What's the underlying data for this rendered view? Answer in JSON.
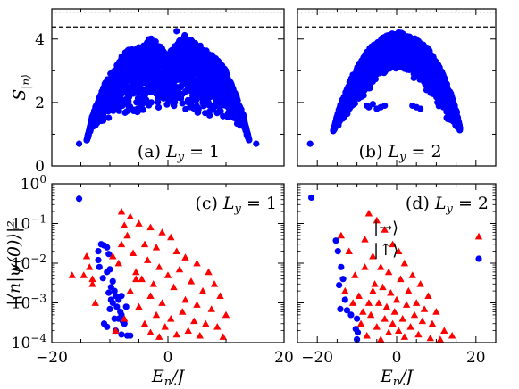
{
  "figure": {
    "xlabel": "E_n/J",
    "ylabel_top": "S_|n⟩",
    "ylabel_bottom": "|⟨n|ψ(0)⟩|²"
  },
  "chart_data": [
    {
      "id": "a",
      "type": "scatter",
      "panel_label": "(a) L_y = 1",
      "ylabel": "S_|n⟩",
      "xlim": [
        -20,
        20
      ],
      "ylim": [
        0,
        4.95
      ],
      "y_ticks": [
        0,
        2,
        4
      ],
      "reference_lines": [
        {
          "style": "dotted",
          "y": 4.85
        },
        {
          "style": "dashed",
          "y": 4.38
        }
      ],
      "series": [
        {
          "color": "#0000ff",
          "marker": "circle",
          "envelope": {
            "x": [
              -14,
              -13,
              -12,
              -11,
              -10,
              -9,
              -8,
              -7,
              -6,
              -5,
              -4,
              -3,
              -2,
              -1,
              0,
              1,
              2,
              3,
              4,
              5,
              6,
              7,
              8,
              9,
              10,
              11,
              12,
              13,
              14
            ],
            "upper": [
              0.8,
              1.6,
              2.1,
              2.55,
              2.9,
              3.1,
              3.45,
              3.65,
              3.7,
              3.8,
              3.9,
              4.05,
              3.95,
              3.7,
              3.5,
              3.75,
              3.95,
              4.15,
              4.0,
              3.85,
              3.75,
              3.6,
              3.45,
              3.25,
              3.0,
              2.55,
              2.1,
              1.6,
              0.8
            ],
            "lower": [
              0.8,
              1.2,
              1.3,
              1.4,
              1.45,
              1.5,
              1.55,
              1.6,
              1.6,
              1.65,
              1.7,
              1.75,
              1.8,
              1.85,
              1.9,
              1.85,
              1.8,
              1.75,
              1.7,
              1.65,
              1.6,
              1.55,
              1.55,
              1.5,
              1.45,
              1.4,
              1.3,
              1.2,
              0.8
            ]
          },
          "points": [
            [
              -15.3,
              0.7
            ],
            [
              15.2,
              0.7
            ],
            [
              1.5,
              4.25
            ]
          ]
        }
      ]
    },
    {
      "id": "b",
      "type": "scatter",
      "panel_label": "(b) L_y = 2",
      "xlim": [
        -25,
        25
      ],
      "ylim": [
        0,
        4.95
      ],
      "reference_lines": [
        {
          "style": "dotted",
          "y": 4.85
        },
        {
          "style": "dashed",
          "y": 4.38
        }
      ],
      "series": [
        {
          "color": "#0000ff",
          "marker": "circle",
          "envelope": {
            "x": [
              -16,
              -15,
              -14,
              -13,
              -12,
              -11,
              -10,
              -9,
              -8,
              -7,
              -6,
              -5,
              -4,
              -3,
              -2,
              -1,
              0,
              1,
              2,
              3,
              4,
              5,
              6,
              7,
              8,
              9,
              10,
              11,
              12,
              13,
              14,
              15,
              16
            ],
            "upper": [
              1.1,
              1.6,
              2.0,
              2.3,
              2.6,
              2.9,
              3.1,
              3.3,
              3.5,
              3.7,
              3.8,
              3.9,
              4.0,
              4.1,
              4.15,
              4.2,
              4.22,
              4.2,
              4.15,
              4.1,
              4.05,
              4.0,
              3.9,
              3.8,
              3.7,
              3.5,
              3.3,
              3.1,
              2.8,
              2.5,
              2.2,
              1.8,
              1.2
            ],
            "lower": [
              1.1,
              1.2,
              1.35,
              1.5,
              1.7,
              1.9,
              2.0,
              2.1,
              2.2,
              2.3,
              2.5,
              2.7,
              2.8,
              2.9,
              3.0,
              3.0,
              3.0,
              3.0,
              3.0,
              2.9,
              2.8,
              2.7,
              2.6,
              2.4,
              2.3,
              2.2,
              2.0,
              1.8,
              1.6,
              1.4,
              1.3,
              1.2,
              1.1
            ]
          },
          "points": [
            [
              -21.8,
              0.7
            ],
            [
              -7.5,
              1.9
            ],
            [
              -7.0,
              1.85
            ],
            [
              -6.0,
              1.95
            ],
            [
              -5.0,
              1.8
            ],
            [
              -4.0,
              1.85
            ],
            [
              -3.0,
              1.9
            ],
            [
              4.0,
              1.9
            ],
            [
              5.0,
              1.85
            ],
            [
              6.0,
              1.8
            ]
          ]
        }
      ]
    },
    {
      "id": "c",
      "type": "scatter",
      "panel_label": "(c) L_y = 1",
      "xlabel": "E_n/J",
      "ylabel": "|⟨n|ψ(0)⟩|²",
      "xlim": [
        -20,
        20
      ],
      "x_ticks": [
        -20,
        0,
        20
      ],
      "y_scale": "log",
      "ylim": [
        0.0001,
        1
      ],
      "y_ticks": [
        0.0001,
        0.001,
        0.01,
        0.1,
        1
      ],
      "series": [
        {
          "color": "#0000ff",
          "marker": "circle",
          "points": [
            [
              -15.3,
              0.42
            ],
            [
              -11.5,
              0.03
            ],
            [
              -11.0,
              0.028
            ],
            [
              -10.5,
              0.025
            ],
            [
              -12.0,
              0.02
            ],
            [
              -12.0,
              0.012
            ],
            [
              -11.8,
              0.008
            ],
            [
              -10.2,
              0.017
            ],
            [
              -10.0,
              0.007
            ],
            [
              -10.5,
              0.006
            ],
            [
              -11.2,
              0.0042
            ],
            [
              -9.5,
              0.0035
            ],
            [
              -9.8,
              0.0025
            ],
            [
              -9.2,
              0.002
            ],
            [
              -10.2,
              0.0018
            ],
            [
              -9.0,
              0.0015
            ],
            [
              -8.5,
              0.0012
            ],
            [
              -9.5,
              0.001
            ],
            [
              -8.8,
              0.0008
            ],
            [
              -10.0,
              0.0007
            ],
            [
              -8.2,
              0.0006
            ],
            [
              -8.0,
              0.0005
            ],
            [
              -9.2,
              0.0004
            ],
            [
              -7.5,
              0.0003
            ],
            [
              -10.5,
              0.00025
            ],
            [
              -9.0,
              0.0002
            ],
            [
              -8.0,
              0.00016
            ],
            [
              -7.0,
              0.00015
            ],
            [
              -6.5,
              0.00015
            ],
            [
              -11.0,
              0.0003
            ],
            [
              -7.8,
              0.00035
            ],
            [
              -8.5,
              0.0004
            ],
            [
              -7.2,
              0.0008
            ],
            [
              -9.8,
              0.0012
            ],
            [
              -8.0,
              0.0015
            ]
          ]
        },
        {
          "color": "#ff0000",
          "marker": "triangle",
          "points": [
            [
              -16.5,
              0.005
            ],
            [
              -14.0,
              0.015
            ],
            [
              -13.5,
              0.008
            ],
            [
              -13.0,
              0.003
            ],
            [
              -12.5,
              0.001
            ],
            [
              -8.0,
              0.2
            ],
            [
              -6.5,
              0.15
            ],
            [
              -5.0,
              0.1
            ],
            [
              -3.0,
              0.08
            ],
            [
              -1.0,
              0.06
            ],
            [
              0.5,
              0.045
            ],
            [
              -7.0,
              0.05
            ],
            [
              -4.0,
              0.03
            ],
            [
              -2.0,
              0.025
            ],
            [
              1.5,
              0.02
            ],
            [
              -6.0,
              0.018
            ],
            [
              3.0,
              0.014
            ],
            [
              -3.5,
              0.012
            ],
            [
              5.0,
              0.01
            ],
            [
              -8.5,
              0.01
            ],
            [
              -1.5,
              0.008
            ],
            [
              2.0,
              0.007
            ],
            [
              -5.5,
              0.006
            ],
            [
              7.0,
              0.006
            ],
            [
              0.0,
              0.005
            ],
            [
              -4.5,
              0.004
            ],
            [
              4.0,
              0.0035
            ],
            [
              -2.5,
              0.003
            ],
            [
              8.0,
              0.003
            ],
            [
              1.0,
              0.0025
            ],
            [
              -6.5,
              0.002
            ],
            [
              6.0,
              0.002
            ],
            [
              -3.0,
              0.0015
            ],
            [
              9.0,
              0.0015
            ],
            [
              3.0,
              0.0012
            ],
            [
              -1.0,
              0.001
            ],
            [
              5.0,
              0.0009
            ],
            [
              -5.0,
              0.0008
            ],
            [
              7.5,
              0.0007
            ],
            [
              2.5,
              0.0006
            ],
            [
              -2.0,
              0.0005
            ],
            [
              10.0,
              0.0005
            ],
            [
              0.5,
              0.0004
            ],
            [
              4.5,
              0.00035
            ],
            [
              -4.0,
              0.0003
            ],
            [
              6.5,
              0.0003
            ],
            [
              -0.5,
              0.00025
            ],
            [
              8.5,
              0.00025
            ],
            [
              3.5,
              0.0002
            ],
            [
              -3.0,
              0.00018
            ],
            [
              1.5,
              0.00016
            ],
            [
              5.5,
              0.00015
            ],
            [
              -1.5,
              0.00014
            ],
            [
              9.5,
              0.00014
            ],
            [
              -7.5,
              0.0004
            ],
            [
              -9.0,
              0.0002
            ],
            [
              -8.0,
              0.03
            ],
            [
              -9.5,
              0.015
            ],
            [
              -7.5,
              0.09
            ],
            [
              -5.5,
              0.004
            ],
            [
              -13.0,
              0.004
            ],
            [
              -14.5,
              0.005
            ]
          ]
        }
      ]
    },
    {
      "id": "d",
      "type": "scatter",
      "panel_label": "(d) L_y = 2",
      "xlabel": "E_n/J",
      "xlim": [
        -25,
        25
      ],
      "x_ticks": [
        -20,
        0,
        20
      ],
      "y_scale": "log",
      "ylim": [
        0.0001,
        1
      ],
      "legend_position": "right",
      "series": [
        {
          "name": "|→⟩",
          "color": "#ff0000",
          "marker": "triangle",
          "points": [
            [
              -14.0,
              0.05
            ],
            [
              -12.0,
              0.02
            ],
            [
              -10.5,
              0.005
            ],
            [
              -13.0,
              0.002
            ],
            [
              -11.0,
              0.001
            ],
            [
              -7.0,
              0.18
            ],
            [
              -5.0,
              0.12
            ],
            [
              -3.0,
              0.07
            ],
            [
              -8.0,
              0.04
            ],
            [
              -1.0,
              0.03
            ],
            [
              0.5,
              0.02
            ],
            [
              -6.0,
              0.015
            ],
            [
              2.0,
              0.01
            ],
            [
              -4.0,
              0.008
            ],
            [
              -2.0,
              0.006
            ],
            [
              4.0,
              0.005
            ],
            [
              1.0,
              0.004
            ],
            [
              -5.5,
              0.003
            ],
            [
              6.0,
              0.003
            ],
            [
              -3.5,
              0.0025
            ],
            [
              3.0,
              0.002
            ],
            [
              -1.5,
              0.0018
            ],
            [
              8.0,
              0.0015
            ],
            [
              0.0,
              0.0012
            ],
            [
              5.0,
              0.001
            ],
            [
              -4.5,
              0.001
            ],
            [
              2.5,
              0.0009
            ],
            [
              -2.5,
              0.0008
            ],
            [
              7.0,
              0.0007
            ],
            [
              -0.5,
              0.0006
            ],
            [
              10.0,
              0.0006
            ],
            [
              4.5,
              0.0005
            ],
            [
              -6.5,
              0.0005
            ],
            [
              1.5,
              0.0004
            ],
            [
              -3.0,
              0.0004
            ],
            [
              6.5,
              0.00035
            ],
            [
              -1.0,
              0.0003
            ],
            [
              9.0,
              0.0003
            ],
            [
              3.5,
              0.00025
            ],
            [
              -5.0,
              0.00025
            ],
            [
              12.0,
              0.0002
            ],
            [
              0.5,
              0.0002
            ],
            [
              -2.0,
              0.00018
            ],
            [
              5.5,
              0.00016
            ],
            [
              14.0,
              0.00015
            ],
            [
              -7.5,
              0.00015
            ],
            [
              2.0,
              0.00014
            ],
            [
              8.5,
              0.00013
            ],
            [
              -4.0,
              0.00012
            ],
            [
              11.0,
              0.00012
            ],
            [
              -9.0,
              0.0003
            ],
            [
              -8.5,
              0.0006
            ],
            [
              -7.0,
              0.001
            ],
            [
              -6.0,
              0.002
            ],
            [
              -8.0,
              0.008
            ],
            [
              -9.5,
              0.0015
            ]
          ]
        },
        {
          "name": "|↑⟩",
          "color": "#0000ff",
          "marker": "circle",
          "points": [
            [
              -21.5,
              0.45
            ],
            [
              -15.3,
              0.037
            ],
            [
              -14.8,
              0.02
            ],
            [
              -14.0,
              0.008
            ],
            [
              -13.5,
              0.004
            ],
            [
              -14.5,
              0.0028
            ],
            [
              -13.0,
              0.0012
            ],
            [
              -12.5,
              0.00065
            ],
            [
              -11.5,
              0.0005
            ],
            [
              -10.0,
              0.0004
            ],
            [
              -10.3,
              0.00022
            ],
            [
              -9.8,
              0.00018
            ],
            [
              -10.0,
              0.00012
            ],
            [
              -14.2,
              0.0007
            ]
          ]
        }
      ]
    }
  ],
  "colors": {
    "circle": "#0000ff",
    "triangle": "#ff0000",
    "axis": "#000000"
  }
}
